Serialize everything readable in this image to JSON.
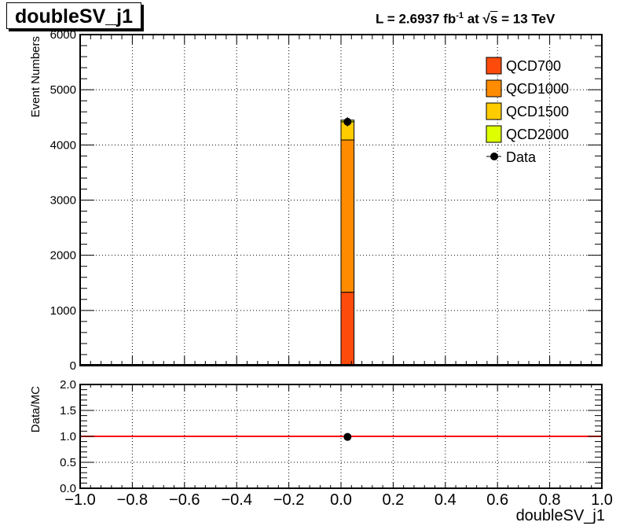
{
  "title": "doubleSV_j1",
  "lumi": {
    "prefix": "L = 2.6937 fb",
    "exp": "-1",
    "mid": " at  √",
    "s": "s",
    "suffix": " = 13 TeV"
  },
  "chart_data": [
    {
      "type": "bar",
      "subtype": "stacked-histogram",
      "title": "doubleSV_j1",
      "xlabel": "doubleSV_j1",
      "ylabel": "Event Numbers",
      "xlim": [
        -1.0,
        1.0
      ],
      "ylim": [
        0,
        6000
      ],
      "grid": true,
      "legend_position": "top-right",
      "bin": [
        0.0,
        0.05
      ],
      "x_ticks": [
        "−1.0",
        "−0.8",
        "−0.6",
        "−0.4",
        "−0.2",
        "0.0",
        "0.2",
        "0.4",
        "0.6",
        "0.8",
        "1.0"
      ],
      "y_ticks": [
        "0",
        "1000",
        "2000",
        "3000",
        "4000",
        "5000",
        "6000"
      ],
      "series": [
        {
          "name": "QCD700",
          "color": "#fd4b0c",
          "value": 1330
        },
        {
          "name": "QCD1000",
          "color": "#ff8c00",
          "value": 2760
        },
        {
          "name": "QCD1500",
          "color": "#ffcc00",
          "value": 330
        },
        {
          "name": "QCD2000",
          "color": "#ddff00",
          "value": 30
        }
      ],
      "data": {
        "name": "Data",
        "x": 0.025,
        "y": 4420
      }
    },
    {
      "type": "scatter",
      "ylabel": "Data/MC",
      "xlabel": "doubleSV_j1",
      "xlim": [
        -1.0,
        1.0
      ],
      "ylim": [
        0.0,
        2.0
      ],
      "grid": true,
      "y_ticks": [
        "0.0",
        "0.5",
        "1.0",
        "1.5",
        "2.0"
      ],
      "reference_line": {
        "y": 1.0,
        "color": "#ff0000"
      },
      "points": [
        {
          "x": 0.025,
          "y": 0.99
        }
      ]
    }
  ]
}
